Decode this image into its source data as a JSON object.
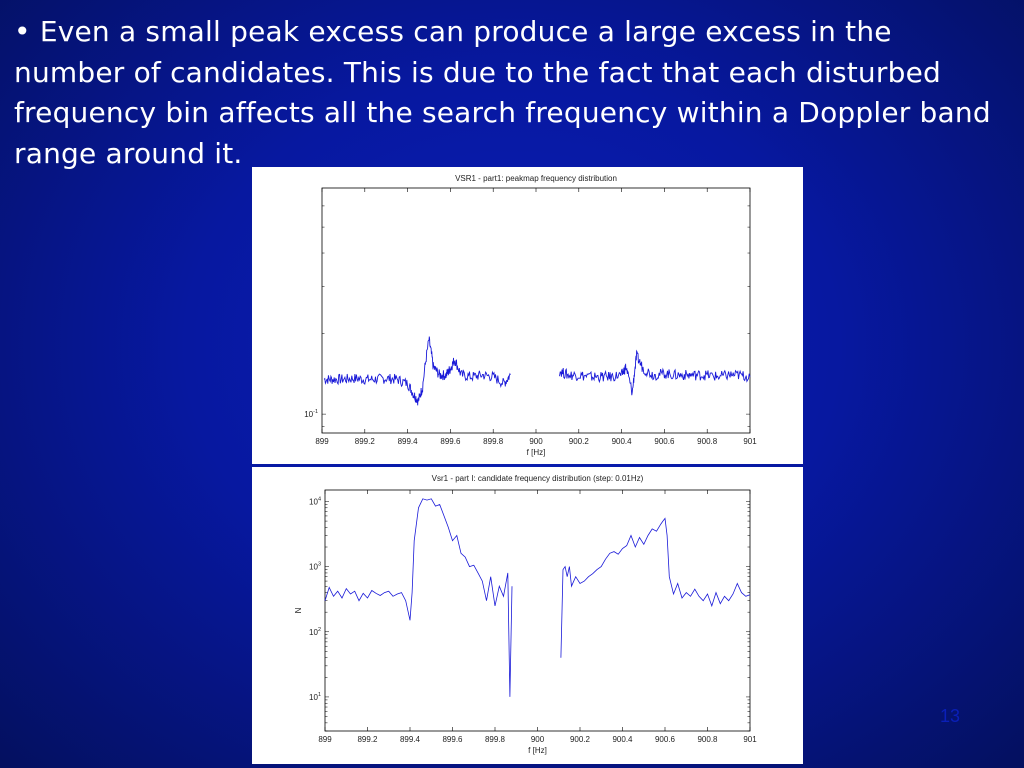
{
  "slide": {
    "bullet_text": "• Even a small peak excess can produce a large excess in the number of candidates. This is due to the fact that each disturbed frequency bin affects all the search frequency within a Doppler band range around it.",
    "page_number": "13"
  },
  "colors": {
    "background": "#0718a0",
    "text": "#ffffff",
    "series": "#1a1ad8"
  },
  "chart_data": [
    {
      "type": "line",
      "title": "VSR1 - part1: peakmap frequency distribution",
      "xlabel": "f [Hz]",
      "ylabel": "",
      "xlim": [
        899,
        901
      ],
      "ylog": true,
      "ylim": [
        0.085,
        0.7
      ],
      "x_ticks": [
        "899",
        "899.2",
        "899.4",
        "899.6",
        "899.8",
        "900",
        "900.2",
        "900.4",
        "900.6",
        "900.8",
        "901"
      ],
      "y_tick_labels": [
        {
          "base": "10",
          "exp": "-1",
          "value": 0.1
        }
      ],
      "grid": false,
      "series": [
        {
          "segments": [
            {
              "x": [
                899.01,
                899.05,
                899.1,
                899.15,
                899.2,
                899.25,
                899.3,
                899.35,
                899.4,
                899.43,
                899.45,
                899.47,
                899.5,
                899.52,
                899.55,
                899.58,
                899.6,
                899.62,
                899.65,
                899.7,
                899.75,
                899.8,
                899.85,
                899.88
              ],
              "y": [
                0.135,
                0.135,
                0.135,
                0.136,
                0.135,
                0.135,
                0.136,
                0.135,
                0.13,
                0.118,
                0.112,
                0.126,
                0.19,
                0.15,
                0.14,
                0.14,
                0.148,
                0.16,
                0.14,
                0.138,
                0.14,
                0.138,
                0.13,
                0.14
              ]
            },
            {
              "x": [
                900.11,
                900.15,
                900.2,
                900.25,
                900.3,
                900.35,
                900.4,
                900.42,
                900.45,
                900.47,
                900.5,
                900.55,
                900.6,
                900.65,
                900.7,
                900.75,
                900.8,
                900.85,
                900.9,
                900.95,
                901.0
              ],
              "y": [
                0.145,
                0.14,
                0.14,
                0.138,
                0.138,
                0.138,
                0.14,
                0.15,
                0.12,
                0.165,
                0.148,
                0.14,
                0.142,
                0.14,
                0.14,
                0.14,
                0.14,
                0.138,
                0.14,
                0.14,
                0.138
              ]
            }
          ]
        }
      ]
    },
    {
      "type": "line",
      "title": "Vsr1 - part I: candidate frequency distribution (step: 0.01Hz)",
      "xlabel": "f [Hz]",
      "ylabel": "N",
      "xlim": [
        899,
        901
      ],
      "ylog": true,
      "ylim": [
        3,
        15000
      ],
      "x_ticks": [
        "899",
        "899.2",
        "899.4",
        "899.6",
        "899.8",
        "900",
        "900.2",
        "900.4",
        "900.6",
        "900.8",
        "901"
      ],
      "y_tick_labels": [
        {
          "base": "10",
          "exp": "1",
          "value": 10
        },
        {
          "base": "10",
          "exp": "2",
          "value": 100
        },
        {
          "base": "10",
          "exp": "3",
          "value": 1000
        },
        {
          "base": "10",
          "exp": "4",
          "value": 10000
        }
      ],
      "grid": false,
      "series": [
        {
          "segments": [
            {
              "x": [
                899.0,
                899.02,
                899.04,
                899.06,
                899.08,
                899.1,
                899.12,
                899.14,
                899.16,
                899.18,
                899.2,
                899.22,
                899.24,
                899.26,
                899.28,
                899.3,
                899.32,
                899.34,
                899.36,
                899.38,
                899.4,
                899.41,
                899.42,
                899.44,
                899.46,
                899.48,
                899.5,
                899.52,
                899.54,
                899.56,
                899.58,
                899.6,
                899.62,
                899.64,
                899.66,
                899.68,
                899.7,
                899.72,
                899.74,
                899.76,
                899.78,
                899.8,
                899.82,
                899.84,
                899.86,
                899.87,
                899.88
              ],
              "y": [
                300,
                480,
                350,
                420,
                330,
                460,
                380,
                420,
                300,
                390,
                330,
                430,
                390,
                360,
                400,
                420,
                350,
                380,
                400,
                300,
                150,
                400,
                2500,
                8000,
                11000,
                10500,
                11000,
                8500,
                9000,
                6000,
                4000,
                2500,
                3000,
                1600,
                1400,
                1000,
                1050,
                800,
                600,
                300,
                700,
                250,
                500,
                350,
                800,
                10,
                500
              ]
            },
            {
              "x": [
                900.11,
                900.12,
                900.13,
                900.14,
                900.15,
                900.16,
                900.18,
                900.2,
                900.22,
                900.24,
                900.26,
                900.28,
                900.3,
                900.32,
                900.34,
                900.36,
                900.38,
                900.4,
                900.42,
                900.44,
                900.46,
                900.48,
                900.5,
                900.52,
                900.54,
                900.56,
                900.58,
                900.59,
                900.6,
                900.61,
                900.62,
                900.64,
                900.66,
                900.68,
                900.7,
                900.72,
                900.74,
                900.76,
                900.78,
                900.8,
                900.82,
                900.84,
                900.86,
                900.88,
                900.9,
                900.92,
                900.94,
                900.96,
                900.98,
                901.0
              ],
              "y": [
                40,
                900,
                1000,
                700,
                1000,
                500,
                700,
                550,
                600,
                700,
                780,
                900,
                1000,
                1300,
                1600,
                1700,
                1550,
                1900,
                2100,
                3000,
                2000,
                2800,
                2200,
                3000,
                3800,
                3500,
                4500,
                5000,
                5500,
                3000,
                700,
                380,
                550,
                330,
                400,
                350,
                450,
                350,
                300,
                380,
                250,
                400,
                270,
                350,
                300,
                380,
                550,
                400,
                350,
                370
              ]
            }
          ]
        }
      ]
    }
  ]
}
